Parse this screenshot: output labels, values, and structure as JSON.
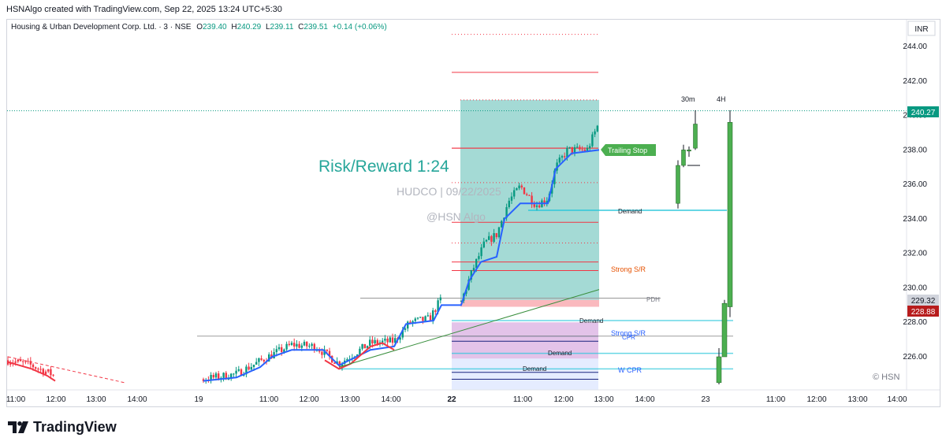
{
  "header": {
    "credit": "HSNAlgo created with TradingView.com, Sep 22, 2025 13:24 UTC+5:30"
  },
  "symbol_line": {
    "name": "Housing & Urban Development Corp. Ltd. · 3 · NSE",
    "o_label": "O",
    "o_value": "239.40",
    "h_label": "H",
    "h_value": "240.29",
    "l_label": "L",
    "l_value": "239.11",
    "c_label": "C",
    "c_value": "239.51",
    "change": "+0.14 (+0.06%)"
  },
  "currency": "INR",
  "price_tags": {
    "last": "240.27",
    "mid": "229.32",
    "low": "228.88"
  },
  "labels": {
    "risk_reward": "Risk/Reward 1:24",
    "watermark": "HUDCO | 09/22/2025",
    "handle": "@HSN Algo",
    "trailing_stop": "Trailing Stop",
    "demand": "Demand",
    "strong_sr": "Strong S/R",
    "pdh": "PDH",
    "cpr": "CPR",
    "w_cpr": "W CPR",
    "tf_30m": "30m",
    "tf_4h": "4H",
    "copyright": "© HSN"
  },
  "footer": {
    "brand": "TradingView"
  },
  "colors": {
    "up": "#089981",
    "down": "#f23645",
    "trend_blue": "#2962ff",
    "target_zone": "#26a69a",
    "stop_zone": "#f23645",
    "purple_zone": "#9c27b0",
    "blue_zone": "#2962ff",
    "demand_line": "#26c6da",
    "risk_text": "#26a69a",
    "trailing_bg": "#4caf50",
    "green_candle": "#4caf50"
  },
  "chart_data": {
    "type": "candlestick",
    "symbol": "HUDCO",
    "exchange": "NSE",
    "interval": "3",
    "ylim": [
      224.5,
      245.3
    ],
    "y_ticks": [
      226,
      228,
      230,
      232,
      234,
      236,
      238,
      240,
      242,
      244
    ],
    "y_tick_labels": [
      "226.00",
      "228.00",
      "230.00",
      "232.00",
      "234.00",
      "236.00",
      "238.00",
      "240.00",
      "242.00",
      "244.00"
    ],
    "x_tick_labels": [
      "11:00",
      "12:00",
      "13:00",
      "14:00",
      "19",
      "11:00",
      "12:00",
      "13:00",
      "14:00",
      "22",
      "11:00",
      "12:00",
      "13:00",
      "14:00",
      "23",
      "11:00",
      "12:00",
      "13:00",
      "14:00"
    ],
    "last_price": 240.27,
    "open": 239.4,
    "high": 240.29,
    "low": 239.11,
    "close": 239.51,
    "change": 0.14,
    "change_pct": 0.06,
    "levels": {
      "target_zone": [
        229.3,
        240.9
      ],
      "stop_zone": [
        228.9,
        229.3
      ],
      "red_levels": [
        244.7,
        242.5,
        238.1,
        236.1,
        233.8,
        232.6,
        231.5,
        231.0
      ],
      "trailing_stop": 238.0,
      "demand_1": 234.5,
      "pdh": 229.4,
      "demand_2": 228.1,
      "strong_sr_lower": 227.2,
      "demand_3": 226.2,
      "w_cpr": 225.3
    },
    "htf_candles": {
      "30m": [
        {
          "o": 234.9,
          "h": 237.4,
          "l": 234.6,
          "c": 237.1
        },
        {
          "o": 237.1,
          "h": 238.3,
          "l": 237.0,
          "c": 238.0
        },
        {
          "o": 238.0,
          "h": 238.2,
          "l": 237.6,
          "c": 238.0
        },
        {
          "o": 238.1,
          "h": 240.3,
          "l": 238.0,
          "c": 239.5
        }
      ],
      "4H": [
        {
          "o": 224.5,
          "h": 226.5,
          "l": 224.4,
          "c": 226.0
        },
        {
          "o": 226.0,
          "h": 229.3,
          "l": 226.0,
          "c": 229.1
        },
        {
          "o": 228.9,
          "h": 240.3,
          "l": 228.3,
          "c": 239.6
        }
      ]
    }
  }
}
